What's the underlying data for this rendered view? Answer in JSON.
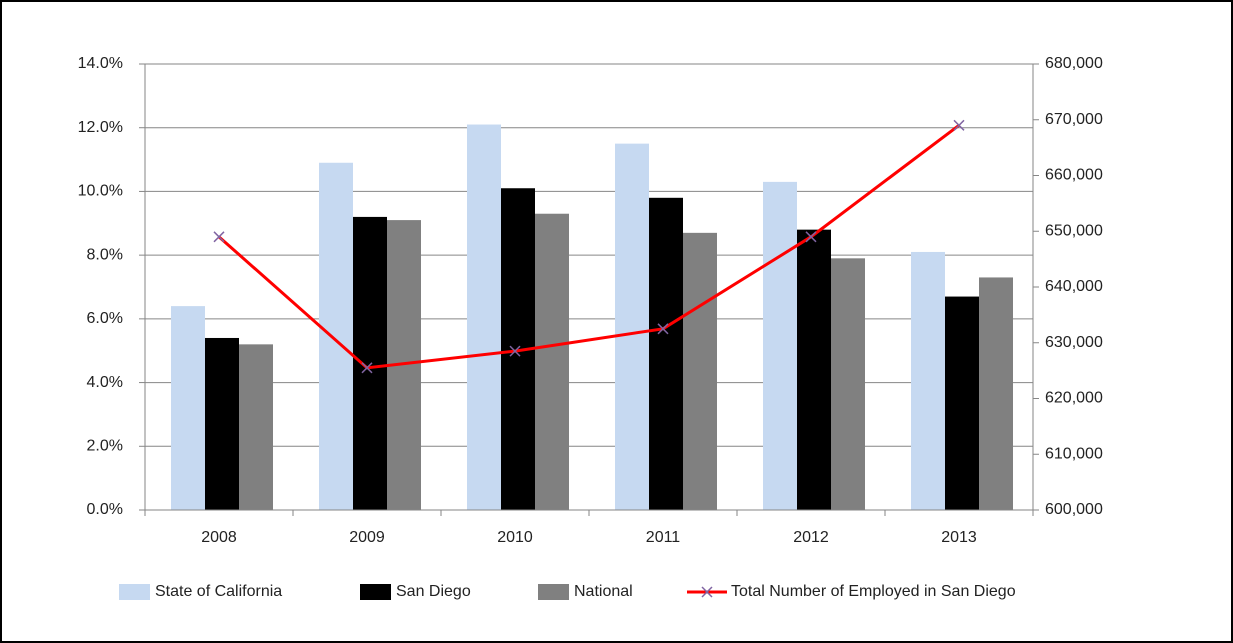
{
  "chart_data": {
    "type": "bar",
    "categories": [
      "2008",
      "2009",
      "2010",
      "2011",
      "2012",
      "2013"
    ],
    "series": [
      {
        "name": "State of California",
        "color": "#c6d9f1",
        "values": [
          6.4,
          10.9,
          12.1,
          11.5,
          10.3,
          8.1
        ]
      },
      {
        "name": "San Diego",
        "color": "#000000",
        "values": [
          5.4,
          9.2,
          10.1,
          9.8,
          8.8,
          6.7
        ]
      },
      {
        "name": "National",
        "color": "#808080",
        "values": [
          5.2,
          9.1,
          9.3,
          8.7,
          7.9,
          7.3
        ]
      },
      {
        "name": "Total Number of Employed in San Diego",
        "color": "#ff0000",
        "marker_color": "#8064a2",
        "type": "line",
        "axis": "y2",
        "values": [
          649000,
          625500,
          628500,
          632500,
          649000,
          669000
        ]
      }
    ],
    "ylim": [
      0,
      14
    ],
    "yticks": [
      {
        "value": 0,
        "label": "0.0%"
      },
      {
        "value": 2,
        "label": "2.0%"
      },
      {
        "value": 4,
        "label": "4.0%"
      },
      {
        "value": 6,
        "label": "6.0%"
      },
      {
        "value": 8,
        "label": "8.0%"
      },
      {
        "value": 10,
        "label": "10.0%"
      },
      {
        "value": 12,
        "label": "12.0%"
      },
      {
        "value": 14,
        "label": "14.0%"
      }
    ],
    "y2lim": [
      600000,
      680000
    ],
    "y2ticks": [
      {
        "value": 600000,
        "label": "600,000"
      },
      {
        "value": 610000,
        "label": "610,000"
      },
      {
        "value": 620000,
        "label": "620,000"
      },
      {
        "value": 630000,
        "label": "630,000"
      },
      {
        "value": 640000,
        "label": "640,000"
      },
      {
        "value": 650000,
        "label": "650,000"
      },
      {
        "value": 660000,
        "label": "660,000"
      },
      {
        "value": 670000,
        "label": "670,000"
      },
      {
        "value": 680000,
        "label": "680,000"
      }
    ],
    "grid": true,
    "legend": "bottom"
  }
}
